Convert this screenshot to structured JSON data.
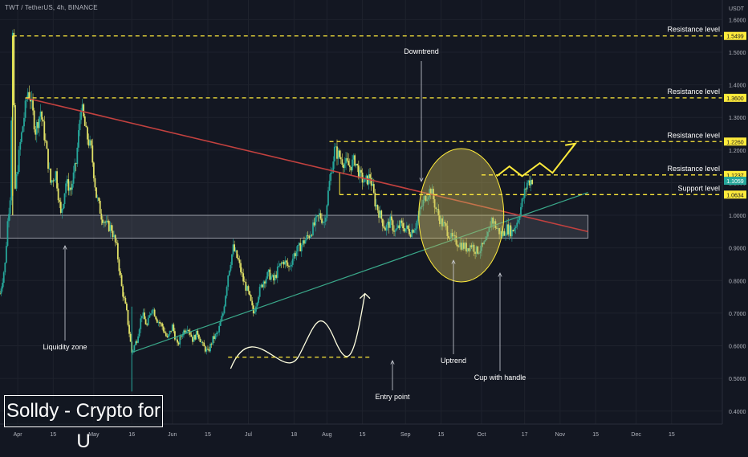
{
  "header": {
    "ticker_line": "TWT / TetherUS, 4h, BINANCE"
  },
  "branding": {
    "label": "Solldy - Crypto for U"
  },
  "colors": {
    "background": "#131722",
    "candle_up": "#26a69a",
    "candle_down": "#e0e066",
    "level_line": "#ffeb3b",
    "downtrend": "#c2413f",
    "uptrend": "#3aa88a",
    "zone": "#2a2e39",
    "highlight": "#c9b85a"
  },
  "chart_data": {
    "type": "line",
    "title": "",
    "currency_label": "USDT",
    "y_axis": {
      "min": 0.36,
      "max": 1.66,
      "scale": "linear",
      "tick_labels": [
        "0.4000",
        "0.5000",
        "0.6000",
        "0.7000",
        "0.8000",
        "0.9000",
        "1.0000",
        "1.1000",
        "1.2000",
        "1.3000",
        "1.4000",
        "1.5000",
        "1.6000"
      ],
      "tick_values": [
        0.4,
        0.5,
        0.6,
        0.7,
        0.8,
        0.9,
        1.0,
        1.1,
        1.2,
        1.3,
        1.4,
        1.5,
        1.6
      ]
    },
    "x_axis": {
      "min": 0,
      "max": 285,
      "tick_labels": [
        "Apr",
        "15",
        "May",
        "16",
        "Jun",
        "15",
        "Jul",
        "18",
        "Aug",
        "15",
        "Sep",
        "15",
        "Oct",
        "17",
        "Nov",
        "15",
        "Dec",
        "15"
      ],
      "tick_days": [
        7,
        21,
        37,
        52,
        68,
        82,
        98,
        116,
        129,
        143,
        160,
        174,
        190,
        207,
        221,
        235,
        251,
        265
      ]
    },
    "price_path": [
      [
        0,
        0.76
      ],
      [
        2,
        0.85
      ],
      [
        3,
        0.98
      ],
      [
        4,
        1.06
      ],
      [
        5,
        1.55
      ],
      [
        6,
        1.08
      ],
      [
        8,
        1.22
      ],
      [
        10,
        1.33
      ],
      [
        11,
        1.38
      ],
      [
        12,
        1.36
      ],
      [
        14,
        1.26
      ],
      [
        16,
        1.32
      ],
      [
        18,
        1.22
      ],
      [
        20,
        1.1
      ],
      [
        22,
        1.13
      ],
      [
        24,
        1.0
      ],
      [
        26,
        1.1
      ],
      [
        28,
        1.08
      ],
      [
        30,
        1.16
      ],
      [
        32,
        1.34
      ],
      [
        34,
        1.25
      ],
      [
        36,
        1.2
      ],
      [
        38,
        1.06
      ],
      [
        40,
        1.0
      ],
      [
        42,
        0.97
      ],
      [
        44,
        0.96
      ],
      [
        46,
        0.9
      ],
      [
        48,
        0.78
      ],
      [
        50,
        0.7
      ],
      [
        52,
        0.58
      ],
      [
        54,
        0.62
      ],
      [
        56,
        0.7
      ],
      [
        58,
        0.66
      ],
      [
        60,
        0.72
      ],
      [
        62,
        0.68
      ],
      [
        64,
        0.66
      ],
      [
        66,
        0.62
      ],
      [
        68,
        0.66
      ],
      [
        70,
        0.6
      ],
      [
        72,
        0.64
      ],
      [
        74,
        0.66
      ],
      [
        76,
        0.62
      ],
      [
        78,
        0.64
      ],
      [
        80,
        0.6
      ],
      [
        82,
        0.58
      ],
      [
        84,
        0.62
      ],
      [
        86,
        0.64
      ],
      [
        88,
        0.7
      ],
      [
        90,
        0.82
      ],
      [
        92,
        0.9
      ],
      [
        94,
        0.86
      ],
      [
        96,
        0.8
      ],
      [
        98,
        0.76
      ],
      [
        100,
        0.7
      ],
      [
        102,
        0.76
      ],
      [
        104,
        0.8
      ],
      [
        106,
        0.82
      ],
      [
        108,
        0.8
      ],
      [
        110,
        0.84
      ],
      [
        112,
        0.86
      ],
      [
        114,
        0.84
      ],
      [
        116,
        0.88
      ],
      [
        118,
        0.9
      ],
      [
        120,
        0.92
      ],
      [
        122,
        0.94
      ],
      [
        124,
        0.97
      ],
      [
        126,
        1.0
      ],
      [
        128,
        0.98
      ],
      [
        130,
        1.1
      ],
      [
        132,
        1.2
      ],
      [
        134,
        1.18
      ],
      [
        136,
        1.16
      ],
      [
        138,
        1.15
      ],
      [
        140,
        1.17
      ],
      [
        142,
        1.12
      ],
      [
        144,
        1.1
      ],
      [
        146,
        1.12
      ],
      [
        148,
        1.04
      ],
      [
        150,
        1.0
      ],
      [
        152,
        0.96
      ],
      [
        154,
        0.98
      ],
      [
        156,
        0.95
      ],
      [
        158,
        0.97
      ],
      [
        160,
        0.96
      ],
      [
        162,
        0.95
      ],
      [
        164,
        0.97
      ],
      [
        166,
        1.02
      ],
      [
        168,
        1.06
      ],
      [
        170,
        1.08
      ],
      [
        172,
        1.02
      ],
      [
        174,
        0.98
      ],
      [
        176,
        0.96
      ],
      [
        178,
        0.93
      ],
      [
        180,
        0.92
      ],
      [
        182,
        0.91
      ],
      [
        184,
        0.9
      ],
      [
        186,
        0.91
      ],
      [
        188,
        0.89
      ],
      [
        190,
        0.9
      ],
      [
        192,
        0.92
      ],
      [
        194,
        0.99
      ],
      [
        196,
        0.96
      ],
      [
        198,
        0.94
      ],
      [
        200,
        0.96
      ],
      [
        202,
        0.95
      ],
      [
        204,
        0.98
      ],
      [
        206,
        1.04
      ],
      [
        208,
        1.1
      ],
      [
        210,
        1.11
      ]
    ],
    "levels": [
      {
        "label": "Resistance level",
        "value": 1.5499,
        "value_label": "1.5499"
      },
      {
        "label": "Resistance level",
        "value": 1.36,
        "value_label": "1.3600"
      },
      {
        "label": "Resistance level",
        "value": 1.226,
        "value_label": "1.2260"
      },
      {
        "label": "Resistance level",
        "value": 1.1237,
        "value_label": "1.1237"
      },
      {
        "label": "Support level",
        "value": 1.0634,
        "value_label": "1.0634"
      }
    ],
    "current_price": {
      "value": 1.1059,
      "value_label": "1.1059"
    },
    "liquidity_zone": {
      "label": "Liquidity zone",
      "y_low": 0.93,
      "y_high": 1.0
    },
    "annotations": [
      {
        "label": "Downtrend"
      },
      {
        "label": "Liquidity zone"
      },
      {
        "label": "Entry point"
      },
      {
        "label": "Uptrend"
      },
      {
        "label": "Cup with handle"
      }
    ]
  }
}
